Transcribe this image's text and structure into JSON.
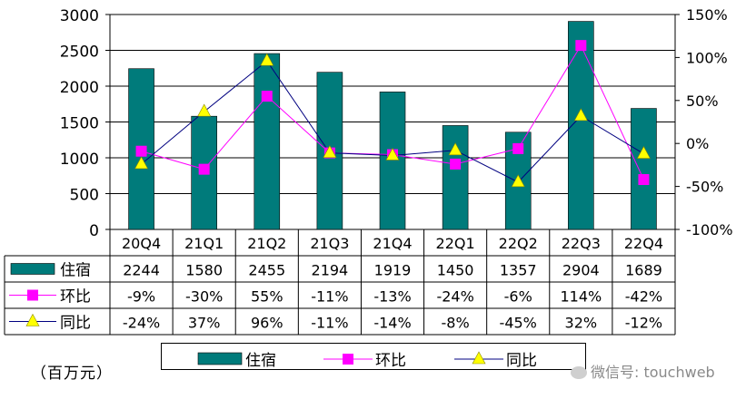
{
  "chart_data": {
    "type": "bar+line",
    "categories": [
      "20Q4",
      "21Q1",
      "21Q2",
      "21Q3",
      "21Q4",
      "22Q1",
      "22Q2",
      "22Q3",
      "22Q4"
    ],
    "series": [
      {
        "name": "住宿",
        "type": "bar",
        "axis": "left",
        "color": "#007b7b",
        "values": [
          2244,
          1580,
          2455,
          2194,
          1919,
          1450,
          1357,
          2904,
          1689
        ]
      },
      {
        "name": "环比",
        "type": "line",
        "axis": "right",
        "color": "#ff00ff",
        "marker": "square",
        "values": [
          -9,
          -30,
          55,
          -11,
          -13,
          -24,
          -6,
          114,
          -42
        ]
      },
      {
        "name": "同比",
        "type": "line",
        "axis": "right",
        "color": "#000080",
        "marker": "triangle",
        "marker_color": "#ffff00",
        "values": [
          -24,
          37,
          96,
          -11,
          -14,
          -8,
          -45,
          32,
          -12
        ]
      }
    ],
    "table_rows": [
      {
        "name": "住宿",
        "cells": [
          "2244",
          "1580",
          "2455",
          "2194",
          "1919",
          "1450",
          "1357",
          "2904",
          "1689"
        ]
      },
      {
        "name": "环比",
        "cells": [
          "-9%",
          "-30%",
          "55%",
          "-11%",
          "-13%",
          "-24%",
          "-6%",
          "114%",
          "-42%"
        ]
      },
      {
        "name": "同比",
        "cells": [
          "-24%",
          "37%",
          "96%",
          "-11%",
          "-14%",
          "-8%",
          "-45%",
          "32%",
          "-12%"
        ]
      }
    ],
    "left_axis": {
      "ylim": [
        0,
        3000
      ],
      "ticks": [
        "0",
        "500",
        "1000",
        "1500",
        "2000",
        "2500",
        "3000"
      ]
    },
    "right_axis": {
      "ylim": [
        -100,
        150
      ],
      "ticks": [
        "-100%",
        "-50%",
        "0%",
        "50%",
        "100%",
        "150%"
      ]
    },
    "grid": true,
    "legend_position": "bottom"
  },
  "unit_label": "（百万元）",
  "watermark": "微信号: touchweb"
}
